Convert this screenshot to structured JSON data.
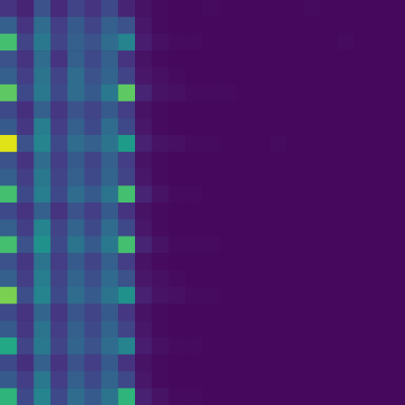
{
  "chart_data": {
    "type": "heatmap",
    "color": "viridis",
    "zlim": [
      0,
      1
    ],
    "tick_labels": false,
    "cells": [
      [
        0.15,
        0.1,
        0.25,
        0.12,
        0.2,
        0.15,
        0.22,
        0.1,
        0.05,
        0.03,
        0.02,
        0.02,
        0.03,
        0.02,
        0.02,
        0.02,
        0.02,
        0.02,
        0.03,
        0.02,
        0.02,
        0.02,
        0.02,
        0.02
      ],
      [
        0.3,
        0.15,
        0.35,
        0.18,
        0.28,
        0.2,
        0.3,
        0.25,
        0.06,
        0.03,
        0.02,
        0.02,
        0.02,
        0.02,
        0.02,
        0.02,
        0.02,
        0.02,
        0.02,
        0.02,
        0.02,
        0.02,
        0.02,
        0.02
      ],
      [
        0.7,
        0.2,
        0.4,
        0.2,
        0.3,
        0.25,
        0.35,
        0.45,
        0.08,
        0.04,
        0.03,
        0.03,
        0.02,
        0.02,
        0.02,
        0.02,
        0.02,
        0.02,
        0.02,
        0.02,
        0.03,
        0.02,
        0.02,
        0.02
      ],
      [
        0.25,
        0.15,
        0.35,
        0.15,
        0.3,
        0.22,
        0.3,
        0.15,
        0.05,
        0.03,
        0.02,
        0.02,
        0.02,
        0.02,
        0.02,
        0.02,
        0.02,
        0.02,
        0.02,
        0.02,
        0.02,
        0.02,
        0.02,
        0.02
      ],
      [
        0.3,
        0.18,
        0.38,
        0.2,
        0.35,
        0.25,
        0.32,
        0.2,
        0.06,
        0.04,
        0.03,
        0.02,
        0.02,
        0.02,
        0.02,
        0.02,
        0.02,
        0.02,
        0.02,
        0.02,
        0.02,
        0.02,
        0.02,
        0.02
      ],
      [
        0.75,
        0.22,
        0.4,
        0.22,
        0.35,
        0.28,
        0.4,
        0.75,
        0.1,
        0.05,
        0.04,
        0.03,
        0.03,
        0.03,
        0.02,
        0.02,
        0.02,
        0.02,
        0.02,
        0.02,
        0.02,
        0.02,
        0.02,
        0.02
      ],
      [
        0.22,
        0.14,
        0.3,
        0.16,
        0.25,
        0.2,
        0.28,
        0.18,
        0.05,
        0.03,
        0.02,
        0.02,
        0.02,
        0.02,
        0.02,
        0.02,
        0.02,
        0.02,
        0.02,
        0.02,
        0.02,
        0.02,
        0.02,
        0.02
      ],
      [
        0.28,
        0.16,
        0.42,
        0.18,
        0.3,
        0.22,
        0.35,
        0.22,
        0.06,
        0.03,
        0.02,
        0.02,
        0.02,
        0.02,
        0.02,
        0.02,
        0.02,
        0.02,
        0.02,
        0.02,
        0.02,
        0.02,
        0.02,
        0.02
      ],
      [
        0.95,
        0.25,
        0.45,
        0.22,
        0.35,
        0.3,
        0.38,
        0.55,
        0.09,
        0.05,
        0.04,
        0.03,
        0.03,
        0.02,
        0.02,
        0.02,
        0.03,
        0.02,
        0.02,
        0.02,
        0.02,
        0.02,
        0.02,
        0.02
      ],
      [
        0.25,
        0.15,
        0.35,
        0.18,
        0.28,
        0.2,
        0.3,
        0.18,
        0.05,
        0.03,
        0.02,
        0.02,
        0.02,
        0.02,
        0.02,
        0.02,
        0.02,
        0.02,
        0.02,
        0.02,
        0.02,
        0.02,
        0.02,
        0.02
      ],
      [
        0.3,
        0.18,
        0.4,
        0.2,
        0.3,
        0.22,
        0.32,
        0.2,
        0.06,
        0.03,
        0.02,
        0.02,
        0.02,
        0.02,
        0.02,
        0.02,
        0.02,
        0.02,
        0.02,
        0.02,
        0.02,
        0.02,
        0.02,
        0.02
      ],
      [
        0.7,
        0.22,
        0.42,
        0.22,
        0.35,
        0.28,
        0.38,
        0.7,
        0.1,
        0.05,
        0.03,
        0.03,
        0.02,
        0.02,
        0.02,
        0.02,
        0.02,
        0.02,
        0.02,
        0.02,
        0.02,
        0.02,
        0.02,
        0.02
      ],
      [
        0.22,
        0.15,
        0.3,
        0.15,
        0.25,
        0.18,
        0.28,
        0.15,
        0.05,
        0.03,
        0.02,
        0.02,
        0.02,
        0.02,
        0.02,
        0.02,
        0.02,
        0.02,
        0.02,
        0.02,
        0.02,
        0.02,
        0.02,
        0.02
      ],
      [
        0.3,
        0.18,
        0.45,
        0.2,
        0.32,
        0.22,
        0.35,
        0.22,
        0.06,
        0.03,
        0.02,
        0.02,
        0.02,
        0.02,
        0.02,
        0.02,
        0.02,
        0.02,
        0.02,
        0.02,
        0.02,
        0.02,
        0.02,
        0.02
      ],
      [
        0.7,
        0.25,
        0.5,
        0.22,
        0.38,
        0.28,
        0.4,
        0.7,
        0.1,
        0.05,
        0.03,
        0.03,
        0.03,
        0.02,
        0.02,
        0.02,
        0.02,
        0.02,
        0.02,
        0.02,
        0.02,
        0.02,
        0.02,
        0.02
      ],
      [
        0.25,
        0.16,
        0.38,
        0.18,
        0.28,
        0.2,
        0.3,
        0.18,
        0.05,
        0.03,
        0.02,
        0.02,
        0.02,
        0.02,
        0.02,
        0.02,
        0.02,
        0.02,
        0.02,
        0.02,
        0.02,
        0.02,
        0.02,
        0.02
      ],
      [
        0.3,
        0.18,
        0.42,
        0.2,
        0.32,
        0.24,
        0.34,
        0.25,
        0.06,
        0.04,
        0.03,
        0.02,
        0.02,
        0.02,
        0.02,
        0.02,
        0.02,
        0.02,
        0.02,
        0.02,
        0.02,
        0.02,
        0.02,
        0.02
      ],
      [
        0.8,
        0.24,
        0.45,
        0.22,
        0.35,
        0.28,
        0.38,
        0.5,
        0.09,
        0.05,
        0.04,
        0.03,
        0.03,
        0.02,
        0.02,
        0.02,
        0.02,
        0.02,
        0.02,
        0.02,
        0.02,
        0.02,
        0.02,
        0.02
      ],
      [
        0.22,
        0.15,
        0.32,
        0.16,
        0.26,
        0.2,
        0.28,
        0.16,
        0.05,
        0.03,
        0.02,
        0.02,
        0.02,
        0.02,
        0.02,
        0.02,
        0.02,
        0.02,
        0.02,
        0.02,
        0.02,
        0.02,
        0.02,
        0.02
      ],
      [
        0.28,
        0.16,
        0.38,
        0.18,
        0.3,
        0.22,
        0.32,
        0.2,
        0.06,
        0.03,
        0.02,
        0.02,
        0.02,
        0.02,
        0.02,
        0.02,
        0.02,
        0.02,
        0.02,
        0.02,
        0.02,
        0.02,
        0.02,
        0.02
      ],
      [
        0.6,
        0.2,
        0.4,
        0.2,
        0.32,
        0.25,
        0.35,
        0.45,
        0.08,
        0.04,
        0.03,
        0.03,
        0.02,
        0.02,
        0.02,
        0.02,
        0.02,
        0.02,
        0.02,
        0.02,
        0.02,
        0.02,
        0.02,
        0.02
      ],
      [
        0.22,
        0.14,
        0.3,
        0.15,
        0.25,
        0.18,
        0.28,
        0.15,
        0.05,
        0.03,
        0.02,
        0.02,
        0.02,
        0.02,
        0.02,
        0.02,
        0.02,
        0.02,
        0.02,
        0.02,
        0.02,
        0.02,
        0.02,
        0.02
      ],
      [
        0.28,
        0.18,
        0.4,
        0.18,
        0.3,
        0.22,
        0.32,
        0.22,
        0.06,
        0.03,
        0.02,
        0.02,
        0.02,
        0.02,
        0.02,
        0.02,
        0.02,
        0.02,
        0.02,
        0.02,
        0.02,
        0.02,
        0.02,
        0.02
      ],
      [
        0.65,
        0.22,
        0.45,
        0.22,
        0.35,
        0.28,
        0.38,
        0.65,
        0.09,
        0.05,
        0.03,
        0.03,
        0.02,
        0.02,
        0.02,
        0.02,
        0.02,
        0.02,
        0.02,
        0.02,
        0.02,
        0.02,
        0.02,
        0.02
      ]
    ]
  }
}
